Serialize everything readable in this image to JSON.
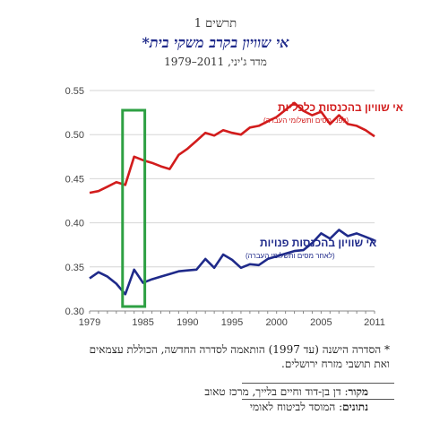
{
  "header": {
    "chart_label": "תרשים 1",
    "title": "אי שוויון בקרב משקי בית*",
    "subtitle": "מדד ג'יני, 2011–1979"
  },
  "chart_data": {
    "type": "line",
    "title": "אי שוויון בקרב משקי בית*",
    "subtitle": "מדד ג'יני, 2011–1979",
    "xlabel": "",
    "ylabel": "",
    "xlim": [
      1979,
      2011
    ],
    "ylim": [
      0.3,
      0.55
    ],
    "x_ticks": [
      1979,
      1985,
      1990,
      1995,
      2000,
      2005,
      2011
    ],
    "y_ticks": [
      0.3,
      0.35,
      0.4,
      0.45,
      0.5,
      0.55
    ],
    "y_tick_labels": [
      "0.30",
      "0.35",
      "0.40",
      "0.45",
      "0.50",
      "0.55"
    ],
    "grid": "horizontal",
    "highlight_box": {
      "x_range": [
        1982.7,
        1985.2
      ],
      "color": "#2ea043"
    },
    "series": [
      {
        "name": "אי שוויון בהכנסות כלכליות",
        "note": "(לפני מסים ותשלומי העברה)",
        "color": "#d21c1c",
        "x": [
          1979,
          1980,
          1981,
          1982,
          1983,
          1984,
          1985,
          1986,
          1987,
          1988,
          1989,
          1990,
          1991,
          1992,
          1993,
          1994,
          1995,
          1996,
          1997,
          1998,
          1999,
          2000,
          2001,
          2002,
          2003,
          2004,
          2005,
          2006,
          2007,
          2008,
          2009,
          2010,
          2011
        ],
        "values": [
          0.434,
          0.436,
          0.441,
          0.446,
          0.443,
          0.475,
          0.471,
          0.468,
          0.464,
          0.461,
          0.477,
          0.484,
          0.493,
          0.502,
          0.499,
          0.505,
          0.502,
          0.5,
          0.508,
          0.51,
          0.515,
          0.52,
          0.528,
          0.536,
          0.527,
          0.522,
          0.526,
          0.512,
          0.522,
          0.512,
          0.51,
          0.505,
          0.498
        ]
      },
      {
        "name": "אי שוויון בהכנסות פנויות",
        "note": "(לאחר מסים ותשלומי העברה)",
        "color": "#1f2a8a",
        "x": [
          1979,
          1980,
          1981,
          1982,
          1983,
          1984,
          1985,
          1986,
          1987,
          1988,
          1989,
          1990,
          1991,
          1992,
          1993,
          1994,
          1995,
          1996,
          1997,
          1998,
          1999,
          2000,
          2001,
          2002,
          2003,
          2004,
          2005,
          2006,
          2007,
          2008,
          2009,
          2010,
          2011
        ],
        "values": [
          0.337,
          0.344,
          0.339,
          0.331,
          0.319,
          0.347,
          0.332,
          0.336,
          0.339,
          0.342,
          0.345,
          0.346,
          0.347,
          0.359,
          0.349,
          0.364,
          0.358,
          0.349,
          0.353,
          0.352,
          0.359,
          0.362,
          0.365,
          0.368,
          0.369,
          0.377,
          0.388,
          0.382,
          0.392,
          0.385,
          0.388,
          0.384,
          0.38
        ]
      }
    ]
  },
  "footnote": "* הסדרה הישנה (עד 1997) הותאמה לסדרה החדשה, הכוללת עצמאים ואת תושבי מזרח ירושלים.",
  "source": {
    "label": "מקור",
    "text": ": דן בן-דוד וחיים בלייך, מרכז טאוב"
  },
  "data_source": {
    "label": "נתונים",
    "text": ": המוסד לביטוח לאומי"
  }
}
